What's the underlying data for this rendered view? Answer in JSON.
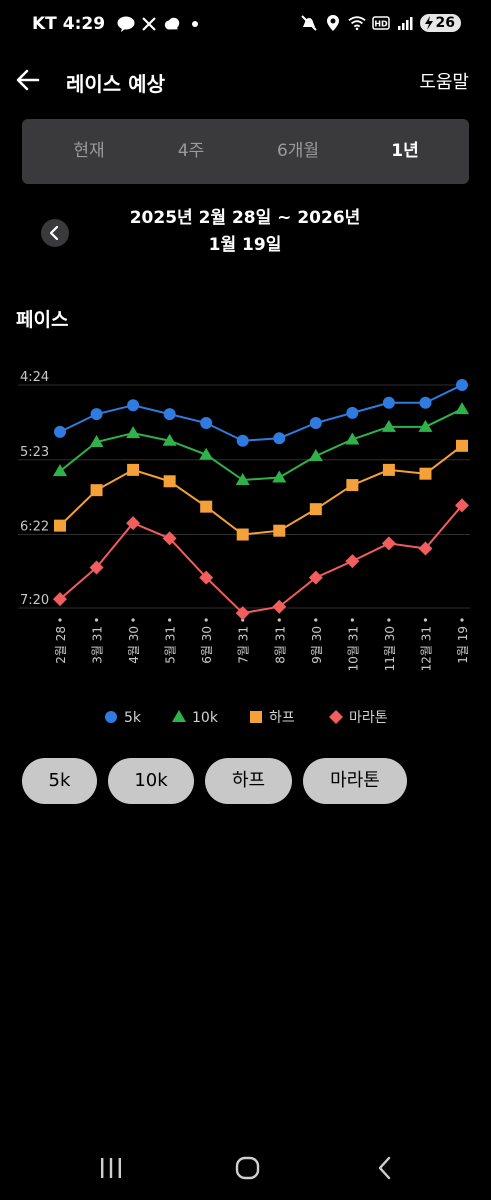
{
  "status": {
    "carrier": "KT",
    "time": "4:29",
    "battery": "26"
  },
  "header": {
    "title": "레이스 예상",
    "help_label": "도움말"
  },
  "tabs": [
    {
      "label": "현재",
      "active": false
    },
    {
      "label": "4주",
      "active": false
    },
    {
      "label": "6개월",
      "active": false
    },
    {
      "label": "1년",
      "active": true
    }
  ],
  "date_range": {
    "line1": "2025년 2월 28일 ~ 2026년",
    "line2": "1월 19일"
  },
  "section_title": "페이스",
  "chart_data": {
    "type": "line",
    "categories": [
      "2월 28",
      "3월 31",
      "4월 30",
      "5월 31",
      "6월 30",
      "7월 31",
      "8월 31",
      "9월 30",
      "10월 31",
      "11월 30",
      "12월 31",
      "1월 19"
    ],
    "y_ticks": [
      "4:24",
      "5:23",
      "6:22",
      "7:20"
    ],
    "y_tick_seconds": [
      264,
      323,
      382,
      440
    ],
    "ylim_seconds": [
      264,
      440
    ],
    "y_inverted": true,
    "grid": true,
    "legend_position": "bottom",
    "series": [
      {
        "name": "5k",
        "color": "#2f7be0",
        "marker": "circle",
        "values": [
          301,
          287,
          280,
          287,
          294,
          308,
          306,
          294,
          286,
          278,
          278,
          264
        ]
      },
      {
        "name": "10k",
        "color": "#2fb249",
        "marker": "triangle",
        "values": [
          332,
          309,
          302,
          308,
          319,
          339,
          337,
          320,
          307,
          297,
          297,
          283
        ]
      },
      {
        "name": "하프",
        "color": "#f4a13a",
        "marker": "square",
        "values": [
          375,
          347,
          331,
          340,
          360,
          382,
          379,
          362,
          343,
          331,
          334,
          312
        ]
      },
      {
        "name": "마라톤",
        "color": "#f25d5d",
        "marker": "diamond",
        "values": [
          433,
          408,
          373,
          385,
          416,
          444,
          439,
          416,
          403,
          389,
          393,
          359
        ]
      }
    ]
  },
  "buttons": [
    {
      "label": "5k"
    },
    {
      "label": "10k"
    },
    {
      "label": "하프"
    },
    {
      "label": "마라톤"
    }
  ]
}
